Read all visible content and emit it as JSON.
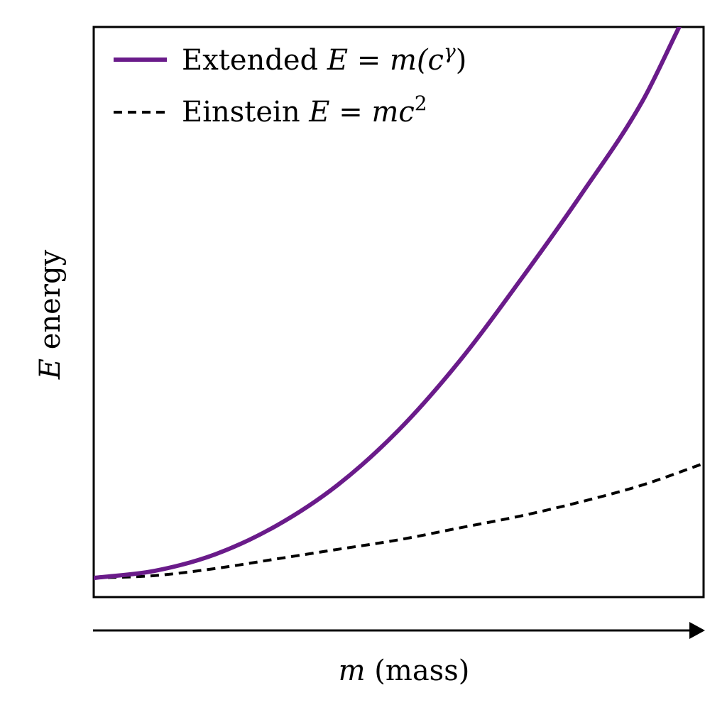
{
  "chart_data": {
    "type": "line",
    "xlabel": {
      "var": "m",
      "rest": " (mass)"
    },
    "ylabel": {
      "var": "E",
      "rest": " energy"
    },
    "legend": {
      "placement": "top-left",
      "entries": [
        {
          "series": "extended",
          "prefix": "Extended ",
          "formula": "E = m(c",
          "exponent": "γ",
          "suffix": ")"
        },
        {
          "series": "einstein",
          "prefix": "Einstein ",
          "formula": "E = mc",
          "exponent": "2",
          "suffix": ""
        }
      ]
    },
    "series": [
      {
        "name": "Extended E = m(cγ)",
        "key": "extended",
        "color": "#6a1b8a",
        "style": "solid",
        "x": [
          0,
          0.1,
          0.2,
          0.3,
          0.4,
          0.5,
          0.6,
          0.7,
          0.8,
          0.9,
          0.96
        ],
        "y": [
          0.0,
          0.015,
          0.05,
          0.11,
          0.195,
          0.31,
          0.455,
          0.625,
          0.805,
          1.0,
          1.155
        ]
      },
      {
        "name": "Einstein E = mc2",
        "key": "einstein",
        "color": "#000000",
        "style": "dashed",
        "x": [
          0,
          0.1,
          0.2,
          0.3,
          0.4,
          0.5,
          0.6,
          0.7,
          0.8,
          0.9,
          1.0
        ],
        "y": [
          0.0,
          0.005,
          0.02,
          0.04,
          0.06,
          0.08,
          0.105,
          0.13,
          0.16,
          0.195,
          0.24
        ]
      }
    ],
    "xlim": [
      0,
      1
    ],
    "ylim": [
      -0.04,
      1.155
    ],
    "grid": false,
    "ticks": false,
    "x_axis_arrow": true
  }
}
